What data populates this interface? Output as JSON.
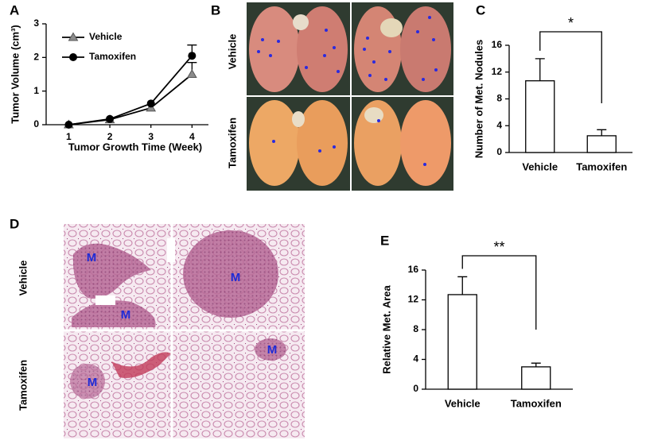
{
  "panel_labels": [
    "A",
    "B",
    "C",
    "D",
    "E"
  ],
  "panel_b": {
    "rows": [
      "Vehicle",
      "Tamoxifen"
    ]
  },
  "panel_d": {
    "rows": [
      "Vehicle",
      "Tamoxifen"
    ],
    "region_labels": [
      "M",
      "M",
      "M",
      "M",
      "M"
    ]
  },
  "chart_data": [
    {
      "type": "line",
      "xlabel": "Tumor Growth Time (Week)",
      "ylabel": "Tumor Volume (cm³)",
      "x": [
        1,
        2,
        3,
        4
      ],
      "xticks": [
        1,
        2,
        3,
        4
      ],
      "xlim": [
        0.45,
        4.4
      ],
      "ylim": [
        0,
        3
      ],
      "yticks": [
        0,
        1,
        2,
        3
      ],
      "series": [
        {
          "name": "Vehicle",
          "color": "#8c8c8c",
          "marker": "triangle",
          "values": [
            0,
            0.15,
            0.5,
            1.5
          ],
          "errors": [
            null,
            null,
            null,
            0.35
          ]
        },
        {
          "name": "Tamoxifen",
          "color": "#000000",
          "marker": "circle",
          "values": [
            0,
            0.17,
            0.63,
            2.05
          ],
          "errors": [
            null,
            null,
            null,
            0.32
          ]
        }
      ]
    },
    {
      "type": "bar",
      "ylabel": "Number of Met. Nodules",
      "categories": [
        "Vehicle",
        "Tamoxifen"
      ],
      "values": [
        10.7,
        2.5
      ],
      "errors": [
        3.3,
        0.9
      ],
      "color": "#ffffff",
      "ylim": [
        0,
        16
      ],
      "yticks": [
        0,
        4,
        8,
        12,
        16
      ],
      "annotation": "*"
    },
    {
      "type": "bar",
      "ylabel": "Relative Met. Area",
      "categories": [
        "Vehicle",
        "Tamoxifen"
      ],
      "values": [
        12.7,
        3.0
      ],
      "errors": [
        2.4,
        0.5
      ],
      "color": "#ffffff",
      "ylim": [
        0,
        16
      ],
      "yticks": [
        0,
        4,
        8,
        12,
        16
      ],
      "annotation": "**"
    }
  ]
}
